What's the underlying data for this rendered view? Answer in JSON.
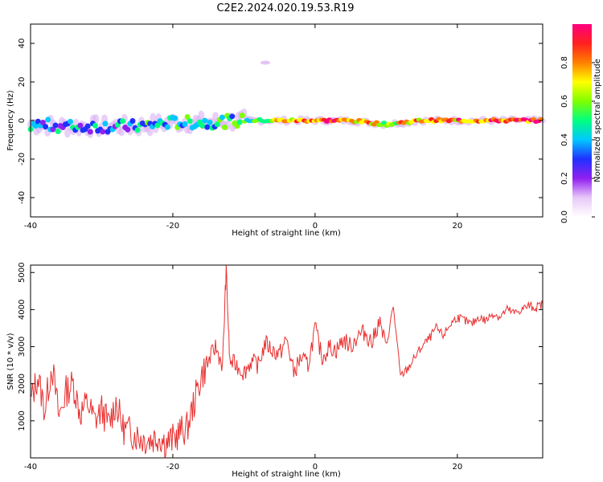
{
  "title": "C2E2.2024.020.19.53.R19",
  "chart_data": [
    {
      "type": "heatmap",
      "xlabel": "Height of straight line (km)",
      "ylabel": "Frequency (Hz)",
      "xlim": [
        -40,
        32
      ],
      "ylim": [
        -50,
        50
      ],
      "xticks": [
        -40,
        -20,
        0,
        20
      ],
      "yticks": [
        -40,
        -20,
        0,
        20,
        40
      ],
      "colorbar": {
        "label": "Normalized spectral amplitude",
        "range": [
          0,
          1
        ],
        "ticks": [
          "0.0",
          "0.2",
          "0.4",
          "0.6",
          "0.8"
        ],
        "colors": [
          "#ffffff",
          "#e8c8f8",
          "#9020f0",
          "#2030ff",
          "#00c8ff",
          "#00ff80",
          "#80ff00",
          "#ffff00",
          "#ff8000",
          "#ff2020",
          "#ff0080"
        ]
      },
      "ridge": [
        {
          "x": -40,
          "freq": -2,
          "amp": 0.3
        },
        {
          "x": -35,
          "freq": -3,
          "amp": 0.35
        },
        {
          "x": -30,
          "freq": -3,
          "amp": 0.32
        },
        {
          "x": -25,
          "freq": -3,
          "amp": 0.38
        },
        {
          "x": -20,
          "freq": -1,
          "amp": 0.45
        },
        {
          "x": -15,
          "freq": -1,
          "amp": 0.45
        },
        {
          "x": -10,
          "freq": 0,
          "amp": 0.55
        },
        {
          "x": -5,
          "freq": 0,
          "amp": 0.7
        },
        {
          "x": 0,
          "freq": 0,
          "amp": 0.85
        },
        {
          "x": 5,
          "freq": 0,
          "amp": 0.8
        },
        {
          "x": 10,
          "freq": -2,
          "amp": 0.7
        },
        {
          "x": 15,
          "freq": 0,
          "amp": 0.72
        },
        {
          "x": 20,
          "freq": 0,
          "amp": 0.78
        },
        {
          "x": 25,
          "freq": 0,
          "amp": 0.85
        },
        {
          "x": 32,
          "freq": 0,
          "amp": 0.9
        }
      ],
      "features": [
        {
          "x": -7,
          "freq": 30,
          "amp": 0.12
        }
      ]
    },
    {
      "type": "line",
      "xlabel": "Height of straight line (km)",
      "ylabel": "SNR (10 * v/v)",
      "xlim": [
        -40,
        32
      ],
      "ylim": [
        0,
        5200
      ],
      "xticks": [
        -40,
        -20,
        0,
        20
      ],
      "yticks": [
        1000,
        2000,
        3000,
        4000,
        5000
      ],
      "color": "#e83030",
      "series": [
        {
          "x": [
            -40,
            -39,
            -38,
            -37,
            -36,
            -35,
            -34,
            -33,
            -32,
            -31,
            -30,
            -29,
            -28,
            -27,
            -26,
            -25,
            -24,
            -23,
            -22,
            -21,
            -20,
            -19,
            -18,
            -17,
            -16,
            -15,
            -14,
            -13,
            -12.5,
            -12,
            -11,
            -10,
            -9,
            -8,
            -7,
            -6,
            -5,
            -4,
            -3,
            -2,
            -1,
            0,
            1,
            2,
            3,
            4,
            5,
            6,
            7,
            8,
            9,
            10,
            11,
            12,
            13,
            14,
            15,
            16,
            17,
            18,
            19,
            20,
            21,
            22,
            23,
            24,
            25,
            26,
            27,
            28,
            29,
            30,
            31,
            32
          ],
          "values": [
            1500,
            2200,
            1300,
            2500,
            1100,
            1800,
            2000,
            1200,
            1500,
            1000,
            1300,
            900,
            1500,
            800,
            700,
            600,
            500,
            500,
            600,
            400,
            500,
            700,
            800,
            1500,
            2200,
            2600,
            3000,
            2500,
            5100,
            2600,
            2500,
            2300,
            2600,
            2500,
            3100,
            2900,
            2800,
            3200,
            2300,
            2700,
            2500,
            3500,
            2700,
            3000,
            2900,
            3200,
            3000,
            3300,
            3400,
            3100,
            3700,
            3000,
            4100,
            2200,
            2400,
            2700,
            3000,
            3200,
            3500,
            3300,
            3600,
            3800,
            3700,
            3600,
            3800,
            3700,
            3900,
            3800,
            4000,
            3900,
            4000,
            4100,
            4050,
            4150
          ]
        }
      ]
    }
  ]
}
